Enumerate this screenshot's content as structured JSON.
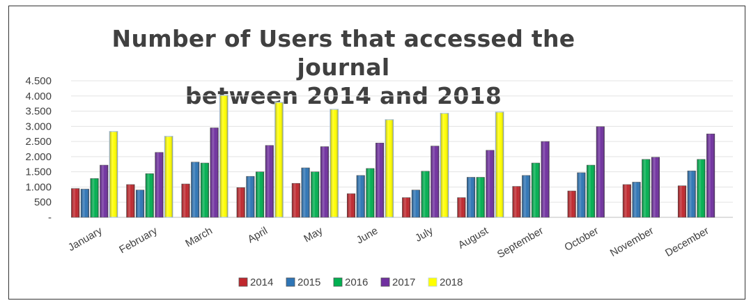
{
  "chart_data": {
    "type": "bar",
    "title": "Number of Users that accessed the journal between 2014 and 2018",
    "title_lines": [
      "Number of Users that accessed the journal",
      "between 2014 and 2018"
    ],
    "xlabel": "",
    "ylabel": "",
    "ylim": [
      0,
      4500
    ],
    "yticks": [
      0,
      500,
      1000,
      1500,
      2000,
      2500,
      3000,
      3500,
      4000,
      4500
    ],
    "ytick_labels": [
      "-",
      "500",
      "1.000",
      "1.500",
      "2.000",
      "2.500",
      "3.000",
      "3.500",
      "4.000",
      "4.500"
    ],
    "grid": true,
    "legend_position": "bottom",
    "categories": [
      "January",
      "February",
      "March",
      "April",
      "May",
      "June",
      "July",
      "August",
      "September",
      "October",
      "November",
      "December"
    ],
    "series": [
      {
        "name": "2014",
        "color": "#c0272d",
        "values": [
          950,
          1080,
          1100,
          980,
          1120,
          780,
          650,
          650,
          1020,
          870,
          1080,
          1040
        ]
      },
      {
        "name": "2015",
        "color": "#2e75b6",
        "values": [
          930,
          900,
          1820,
          1350,
          1630,
          1380,
          900,
          1320,
          1380,
          1470,
          1160,
          1530
        ]
      },
      {
        "name": "2016",
        "color": "#00b050",
        "values": [
          1280,
          1440,
          1790,
          1500,
          1500,
          1610,
          1520,
          1320,
          1790,
          1720,
          1910,
          1910
        ]
      },
      {
        "name": "2017",
        "color": "#7030a0",
        "values": [
          1720,
          2140,
          2950,
          2370,
          2330,
          2450,
          2350,
          2210,
          2500,
          2990,
          1980,
          2750
        ]
      },
      {
        "name": "2018",
        "color": "#ffff00",
        "values": [
          2830,
          2670,
          4020,
          3790,
          3560,
          3220,
          3430,
          3470,
          null,
          null,
          null,
          null
        ]
      }
    ]
  }
}
